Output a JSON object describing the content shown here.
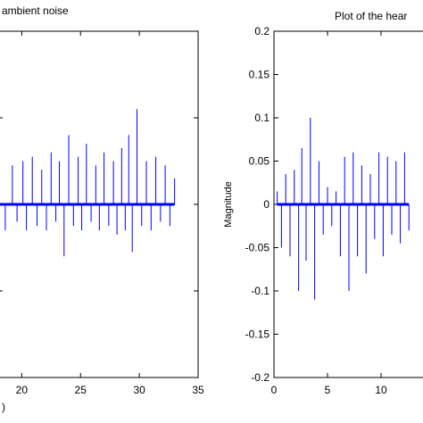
{
  "chart_data": [
    {
      "type": "line",
      "title": "ambient noise",
      "xlabel": ")",
      "ylabel": "",
      "xlim": [
        18,
        35
      ],
      "ylim": [
        -0.2,
        0.2
      ],
      "x_ticks": [
        20,
        25,
        30,
        35
      ],
      "x_tick_labels": [
        "20",
        "25",
        "30",
        "35"
      ],
      "y_ticks": [
        -0.1,
        0,
        0.1
      ],
      "y_tick_labels": [
        "",
        "",
        ""
      ],
      "series_color": "#0000ff",
      "grid": false,
      "x": [
        18,
        18.6,
        19.2,
        19.6,
        20.1,
        20.4,
        20.9,
        21.3,
        21.7,
        22.1,
        22.5,
        22.9,
        23.2,
        23.6,
        24.0,
        24.4,
        24.8,
        25.1,
        25.5,
        25.9,
        26.3,
        26.6,
        27.0,
        27.4,
        27.8,
        28.1,
        28.5,
        28.8,
        29.1,
        29.4,
        29.8,
        30.2,
        30.6,
        31.0,
        31.4,
        31.8,
        32.2,
        32.6,
        33.0
      ],
      "values": [
        0.02,
        -0.03,
        0.045,
        -0.02,
        0.05,
        -0.03,
        0.055,
        -0.025,
        0.04,
        -0.03,
        0.06,
        -0.02,
        0.05,
        -0.06,
        0.08,
        -0.025,
        0.055,
        -0.03,
        0.07,
        -0.02,
        0.045,
        -0.03,
        0.06,
        -0.025,
        0.05,
        -0.035,
        0.065,
        -0.03,
        0.08,
        -0.055,
        0.11,
        -0.025,
        0.05,
        -0.03,
        0.055,
        -0.02,
        0.045,
        -0.025,
        0.03
      ]
    },
    {
      "type": "line",
      "title": "Plot of the hear",
      "xlabel": "",
      "ylabel": "Magnitude",
      "xlim": [
        0,
        14.5
      ],
      "ylim": [
        -0.2,
        0.2
      ],
      "x_ticks": [
        0,
        5,
        10
      ],
      "x_tick_labels": [
        "0",
        "5",
        "10"
      ],
      "y_ticks": [
        -0.2,
        -0.15,
        -0.1,
        -0.05,
        0,
        0.05,
        0.1,
        0.15,
        0.2
      ],
      "y_tick_labels": [
        "-0.2",
        "-0.15",
        "-0.1",
        "-0.05",
        "0",
        "0.05",
        "0.1",
        "0.15",
        "0.2"
      ],
      "series_color": "#0000ff",
      "grid": false,
      "x": [
        0.3,
        0.7,
        1.1,
        1.5,
        1.9,
        2.3,
        2.6,
        3.0,
        3.4,
        3.8,
        4.2,
        4.6,
        5.0,
        5.4,
        5.8,
        6.2,
        6.6,
        7.0,
        7.4,
        7.8,
        8.2,
        8.6,
        9.0,
        9.4,
        9.8,
        10.2,
        10.6,
        11.0,
        11.4,
        11.8,
        12.2,
        12.6
      ],
      "values": [
        0.015,
        -0.05,
        0.035,
        -0.06,
        0.04,
        -0.1,
        0.065,
        -0.065,
        0.1,
        -0.11,
        0.05,
        -0.035,
        0.02,
        -0.025,
        0.015,
        -0.06,
        0.055,
        -0.1,
        0.06,
        -0.06,
        0.045,
        -0.08,
        0.035,
        -0.04,
        0.06,
        -0.06,
        0.055,
        -0.035,
        0.05,
        -0.045,
        0.06,
        -0.03
      ]
    }
  ]
}
